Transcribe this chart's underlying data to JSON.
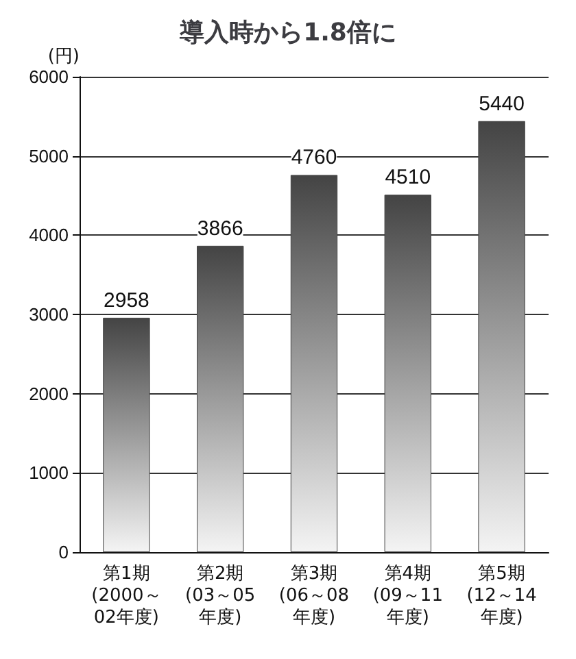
{
  "chart_data": {
    "type": "bar",
    "title": "導入時から1.8倍に",
    "ylabel": "(円)",
    "categories": [
      "第1期\n(2000～\n02年度)",
      "第2期\n(03～05\n年度)",
      "第3期\n(06～08\n年度)",
      "第4期\n(09～11\n年度)",
      "第5期\n(12～14\n年度)"
    ],
    "values": [
      2958,
      3866,
      4760,
      4510,
      5440
    ],
    "color": "#444444",
    "ylim": [
      0,
      6000
    ],
    "yticks": [
      0,
      1000,
      2000,
      3000,
      4000,
      5000,
      6000
    ],
    "grid": "y",
    "data_labels": true
  }
}
